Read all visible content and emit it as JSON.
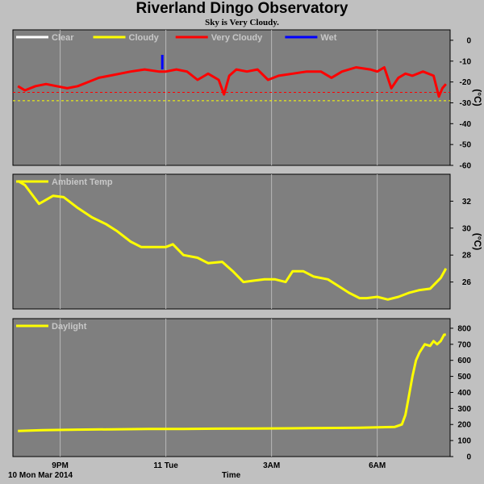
{
  "title": "Riverland Dingo Observatory",
  "subtitle": "Sky is Very Cloudy.",
  "date_label": "10 Mon Mar 2014",
  "time_label": "Time",
  "x_ticks": [
    {
      "label": "9PM",
      "t": 21.0
    },
    {
      "label": "11 Tue",
      "t": 24.0
    },
    {
      "label": "3AM",
      "t": 27.0
    },
    {
      "label": "6AM",
      "t": 30.0
    }
  ],
  "chart_data": [
    {
      "type": "line",
      "name": "sky-temperature",
      "y_unit": "(°C)",
      "ylim": [
        -60,
        5
      ],
      "y_ticks": [
        0,
        -10,
        -20,
        -30,
        -40,
        -50,
        -60
      ],
      "x_range_hours": [
        19.75,
        32.0
      ],
      "legend": [
        {
          "label": "Clear",
          "color": "#ffffff"
        },
        {
          "label": "Cloudy",
          "color": "#ffff00"
        },
        {
          "label": "Very Cloudy",
          "color": "#ff0000"
        },
        {
          "label": "Wet",
          "color": "#0000ff"
        }
      ],
      "thresholds": [
        {
          "value": -25,
          "color": "#ff0000"
        },
        {
          "value": -29,
          "color": "#ffff00"
        }
      ],
      "series": [
        {
          "color": "#ff0000",
          "x": [
            19.8,
            20.0,
            20.3,
            20.6,
            20.9,
            21.2,
            21.5,
            21.8,
            22.1,
            22.4,
            22.7,
            23.0,
            23.4,
            23.8,
            24.0,
            24.3,
            24.6,
            24.9,
            25.2,
            25.5,
            25.65,
            25.8,
            26.0,
            26.3,
            26.6,
            26.9,
            27.2,
            27.6,
            28.0,
            28.4,
            28.7,
            29.0,
            29.4,
            29.8,
            30.0,
            30.2,
            30.4,
            30.6,
            30.8,
            31.0,
            31.3,
            31.6,
            31.75,
            31.85,
            31.95
          ],
          "y": [
            -22,
            -24,
            -22,
            -21,
            -22,
            -23,
            -22,
            -20,
            -18,
            -17,
            -16,
            -15,
            -14,
            -15,
            -15,
            -14,
            -15,
            -19,
            -16,
            -19,
            -26,
            -17,
            -14,
            -15,
            -14,
            -19,
            -17,
            -16,
            -15,
            -15,
            -18,
            -15,
            -13,
            -14,
            -15,
            -13,
            -23,
            -18,
            -16,
            -17,
            -15,
            -17,
            -27,
            -23,
            -21
          ]
        },
        {
          "color": "#0000ff",
          "x": [
            23.9,
            23.9
          ],
          "y": [
            -14,
            -7
          ]
        }
      ]
    },
    {
      "type": "line",
      "name": "ambient-temperature",
      "y_unit": "(°C)",
      "ylim": [
        24,
        34
      ],
      "y_ticks": [
        26,
        28,
        30,
        32
      ],
      "x_range_hours": [
        19.75,
        32.0
      ],
      "legend": [
        {
          "label": "Ambient Temp",
          "color": "#ffff00"
        }
      ],
      "series": [
        {
          "color": "#ffff00",
          "x": [
            19.8,
            20.0,
            20.4,
            20.8,
            21.1,
            21.5,
            21.9,
            22.3,
            22.6,
            23.0,
            23.3,
            23.7,
            24.0,
            24.2,
            24.5,
            24.9,
            25.2,
            25.6,
            25.9,
            26.2,
            26.5,
            26.8,
            27.1,
            27.4,
            27.6,
            27.9,
            28.2,
            28.6,
            28.9,
            29.2,
            29.5,
            29.7,
            30.0,
            30.3,
            30.6,
            30.9,
            31.2,
            31.5,
            31.8,
            31.95
          ],
          "y": [
            33.5,
            33.2,
            31.8,
            32.4,
            32.3,
            31.5,
            30.8,
            30.3,
            29.8,
            29.0,
            28.6,
            28.6,
            28.6,
            28.8,
            28.0,
            27.8,
            27.4,
            27.5,
            26.8,
            26.0,
            26.1,
            26.2,
            26.2,
            26.0,
            26.8,
            26.8,
            26.4,
            26.2,
            25.7,
            25.2,
            24.8,
            24.8,
            24.9,
            24.7,
            24.9,
            25.2,
            25.4,
            25.5,
            26.3,
            27.0
          ]
        }
      ]
    },
    {
      "type": "line",
      "name": "daylight",
      "y_unit": "",
      "ylim": [
        0,
        860
      ],
      "y_ticks": [
        0,
        100,
        200,
        300,
        400,
        500,
        600,
        700,
        800
      ],
      "x_range_hours": [
        19.75,
        32.0
      ],
      "legend": [
        {
          "label": "Daylight",
          "color": "#ffff00"
        }
      ],
      "series": [
        {
          "color": "#ffff00",
          "x": [
            19.8,
            20.5,
            21.5,
            22.5,
            23.5,
            24.5,
            25.5,
            26.5,
            27.5,
            28.5,
            29.5,
            30.0,
            30.5,
            30.7,
            30.8,
            30.9,
            31.0,
            31.1,
            31.2,
            31.35,
            31.5,
            31.6,
            31.7,
            31.8,
            31.9,
            31.95
          ],
          "y": [
            160,
            165,
            168,
            170,
            172,
            172,
            174,
            175,
            176,
            178,
            180,
            182,
            185,
            200,
            260,
            380,
            500,
            600,
            650,
            700,
            690,
            720,
            700,
            720,
            760,
            760
          ]
        }
      ]
    }
  ]
}
